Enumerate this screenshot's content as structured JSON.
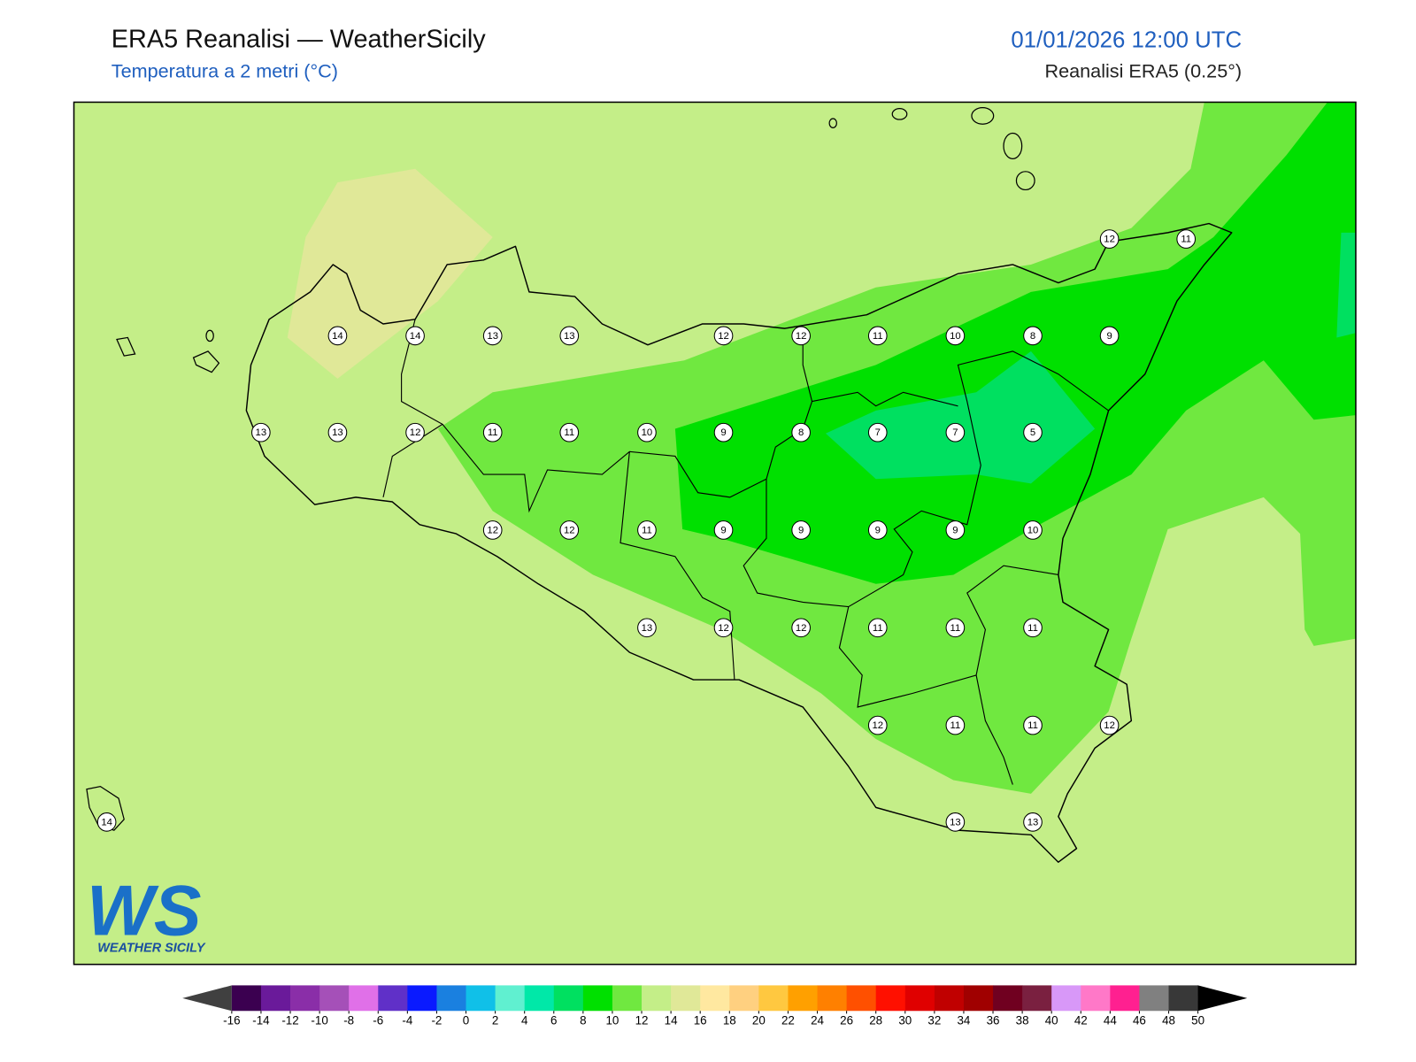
{
  "header": {
    "title": "ERA5 Reanalisi — WeatherSicily",
    "subtitle": "Temperatura a 2 metri (°C)",
    "timestamp": "01/01/2026 12:00 UTC",
    "source": "Reanalisi ERA5 (0.25°)"
  },
  "map": {
    "stations": [
      12,
      11,
      14,
      14,
      13,
      13,
      12,
      12,
      11,
      10,
      8,
      9,
      13,
      13,
      12,
      11,
      11,
      10,
      9,
      8,
      7,
      7,
      5,
      12,
      12,
      11,
      9,
      9,
      9,
      9,
      10,
      13,
      12,
      12,
      11,
      11,
      11,
      12,
      11,
      11,
      12,
      14,
      13,
      13
    ]
  },
  "colorbar": {
    "ticks": [
      -16,
      -14,
      -12,
      -10,
      -8,
      -6,
      -4,
      -2,
      0,
      2,
      4,
      6,
      8,
      10,
      12,
      14,
      16,
      18,
      20,
      22,
      24,
      26,
      28,
      30,
      32,
      34,
      36,
      38,
      40,
      42,
      44,
      46,
      48,
      50
    ],
    "colors": [
      "#3b0050",
      "#6a1a9a",
      "#8a2ea8",
      "#a550b8",
      "#e070e8",
      "#6030c8",
      "#0a1aff",
      "#1a80e0",
      "#10c0e8",
      "#60f0d0",
      "#00e8a8",
      "#00e060",
      "#00e000",
      "#70e840",
      "#c4ee88",
      "#e0e898",
      "#ffe8a0",
      "#ffd080",
      "#ffc840",
      "#ffa000",
      "#ff8000",
      "#ff5000",
      "#ff1000",
      "#e00000",
      "#c00000",
      "#a00000",
      "#700020",
      "#7a2040",
      "#d898f8",
      "#ff78c8",
      "#ff2090",
      "#808080",
      "#383838"
    ],
    "under_color": "#404040",
    "over_color": "#000000"
  },
  "logo": {
    "mark": "WS",
    "text": "WEATHER SICILY"
  }
}
